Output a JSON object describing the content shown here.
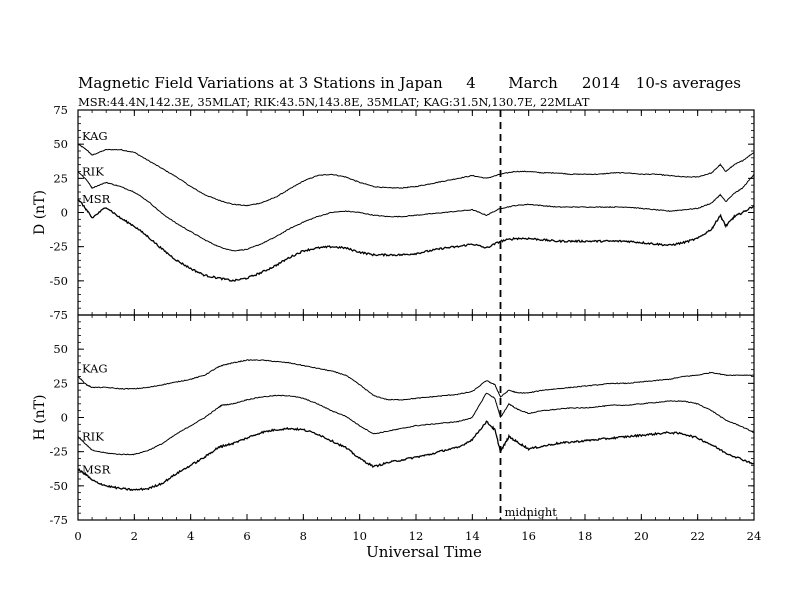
{
  "chart_data": {
    "type": "line",
    "title": "Magnetic Field Variations at 3 Stations in Japan",
    "date": "4 March 2014",
    "date_day": "4",
    "date_month": "March",
    "date_year": "2014",
    "averaging": "10-s averages",
    "subtitle": "MSR:44.4N,142.3E, 35MLAT;  RIK:43.5N,143.8E, 35MLAT;  KAG:31.5N,130.7E, 22MLAT",
    "xlabel": "Universal Time",
    "xlim": [
      0,
      24
    ],
    "x_ticks": [
      0,
      2,
      4,
      6,
      8,
      10,
      12,
      14,
      16,
      18,
      20,
      22,
      24
    ],
    "annotation": {
      "x": 15,
      "label": "midnight"
    },
    "panels": [
      {
        "ylabel": "D (nT)",
        "ylim": [
          -75,
          75
        ],
        "y_ticks": [
          75,
          50,
          25,
          0,
          -25,
          -50,
          -75
        ],
        "series": [
          {
            "name": "KAG",
            "x": [
              0,
              0.3,
              0.5,
              1,
              1.5,
              2,
              2.5,
              3,
              3.5,
              4,
              4.5,
              5,
              5.5,
              6,
              6.5,
              7,
              7.5,
              8,
              8.5,
              9,
              9.5,
              10,
              10.5,
              11,
              11.5,
              12,
              12.5,
              13,
              13.5,
              14,
              14.5,
              15,
              15.5,
              16,
              16.5,
              17,
              17.5,
              18,
              18.5,
              19,
              19.5,
              20,
              20.5,
              21,
              21.5,
              22,
              22.5,
              22.8,
              23,
              23.3,
              23.6,
              24
            ],
            "y": [
              50,
              46,
              42,
              46,
              46,
              44,
              38,
              32,
              26,
              19,
              13,
              9,
              6,
              5,
              7,
              11,
              17,
              23,
              27,
              28,
              26,
              22,
              19,
              18,
              18,
              19,
              21,
              23,
              25,
              27,
              25,
              28,
              30,
              30,
              29,
              29,
              28,
              28,
              28,
              29,
              29,
              28,
              28,
              27,
              26,
              26,
              29,
              35,
              30,
              35,
              38,
              44
            ]
          },
          {
            "name": "RIK",
            "x": [
              0,
              0.3,
              0.5,
              1,
              1.5,
              2,
              2.5,
              3,
              3.5,
              4,
              4.5,
              5,
              5.5,
              6,
              6.5,
              7,
              7.5,
              8,
              8.5,
              9,
              9.5,
              10,
              10.5,
              11,
              11.5,
              12,
              12.5,
              13,
              13.5,
              14,
              14.5,
              15,
              15.5,
              16,
              16.5,
              17,
              17.5,
              18,
              18.5,
              19,
              19.5,
              20,
              20.5,
              21,
              21.5,
              22,
              22.5,
              22.8,
              23,
              23.3,
              23.6,
              24
            ],
            "y": [
              30,
              24,
              18,
              22,
              19,
              15,
              8,
              -1,
              -8,
              -14,
              -20,
              -25,
              -28,
              -27,
              -23,
              -18,
              -12,
              -7,
              -3,
              0,
              1,
              0,
              -2,
              -3,
              -3,
              -2,
              -1,
              0,
              1,
              2,
              -2,
              3,
              5,
              6,
              5,
              4,
              4,
              4,
              4,
              4,
              4,
              3,
              2,
              1,
              2,
              3,
              7,
              13,
              8,
              14,
              18,
              28
            ]
          },
          {
            "name": "MSR",
            "x": [
              0,
              0.3,
              0.5,
              1,
              1.5,
              2,
              2.5,
              3,
              3.5,
              4,
              4.5,
              5,
              5.5,
              6,
              6.5,
              7,
              7.5,
              8,
              8.5,
              9,
              9.5,
              10,
              10.5,
              11,
              11.5,
              12,
              12.5,
              13,
              13.5,
              14,
              14.5,
              15,
              15.5,
              16,
              16.5,
              17,
              17.5,
              18,
              18.5,
              19,
              19.5,
              20,
              20.5,
              21,
              21.5,
              22,
              22.5,
              22.8,
              23,
              23.3,
              23.6,
              24
            ],
            "y": [
              10,
              2,
              -4,
              4,
              -4,
              -10,
              -18,
              -27,
              -35,
              -41,
              -46,
              -48,
              -50,
              -48,
              -44,
              -39,
              -33,
              -28,
              -26,
              -25,
              -26,
              -29,
              -31,
              -31,
              -31,
              -30,
              -28,
              -26,
              -25,
              -23,
              -26,
              -21,
              -19,
              -19,
              -20,
              -21,
              -21,
              -21,
              -21,
              -21,
              -21,
              -22,
              -23,
              -24,
              -22,
              -19,
              -12,
              -2,
              -10,
              -3,
              0,
              5
            ]
          }
        ]
      },
      {
        "ylabel": "H (nT)",
        "ylim": [
          -75,
          75
        ],
        "y_ticks": [
          50,
          25,
          0,
          -25,
          -50,
          -75
        ],
        "series": [
          {
            "name": "KAG",
            "x": [
              0,
              0.3,
              0.5,
              1,
              1.5,
              2,
              2.5,
              3,
              3.5,
              4,
              4.5,
              4.9,
              5.1,
              5.5,
              6,
              6.5,
              7,
              7.5,
              8,
              8.5,
              9,
              9.5,
              10,
              10.5,
              11,
              11.5,
              12,
              12.5,
              13,
              13.5,
              14,
              14.5,
              14.8,
              15,
              15.3,
              15.6,
              16,
              16.5,
              17,
              17.5,
              18,
              18.5,
              19,
              19.5,
              20,
              20.5,
              21,
              21.5,
              22,
              22.5,
              23,
              23.5,
              24
            ],
            "y": [
              30,
              24,
              22,
              22,
              21,
              21,
              22,
              24,
              26,
              28,
              31,
              36,
              38,
              40,
              42,
              42,
              41,
              40,
              38,
              36,
              34,
              31,
              24,
              16,
              13,
              13,
              14,
              15,
              16,
              17,
              19,
              27,
              24,
              15,
              20,
              18,
              18,
              20,
              21,
              22,
              23,
              24,
              25,
              25,
              26,
              27,
              28,
              30,
              31,
              33,
              31,
              31,
              31
            ]
          },
          {
            "name": "RIK",
            "x": [
              0,
              0.3,
              0.5,
              1,
              1.5,
              2,
              2.5,
              3,
              3.5,
              4,
              4.5,
              4.9,
              5.1,
              5.5,
              6,
              6.5,
              7,
              7.5,
              8,
              8.5,
              9,
              9.5,
              10,
              10.5,
              11,
              11.5,
              12,
              12.5,
              13,
              13.5,
              14,
              14.5,
              14.8,
              15,
              15.3,
              15.6,
              16,
              16.5,
              17,
              17.5,
              18,
              18.5,
              19,
              19.5,
              20,
              20.5,
              21,
              21.5,
              22,
              22.5,
              23,
              23.5,
              24
            ],
            "y": [
              -14,
              -20,
              -24,
              -26,
              -27,
              -27,
              -24,
              -19,
              -12,
              -6,
              0,
              6,
              9,
              10,
              13,
              15,
              16,
              16,
              14,
              10,
              5,
              1,
              -6,
              -12,
              -10,
              -8,
              -6,
              -5,
              -4,
              -3,
              0,
              18,
              14,
              0,
              10,
              6,
              3,
              5,
              6,
              7,
              7,
              8,
              9,
              9,
              10,
              11,
              12,
              12,
              10,
              5,
              -2,
              -6,
              -11
            ]
          },
          {
            "name": "MSR",
            "x": [
              0,
              0.3,
              0.5,
              1,
              1.5,
              2,
              2.5,
              3,
              3.5,
              4,
              4.5,
              4.9,
              5.1,
              5.5,
              6,
              6.5,
              7,
              7.5,
              8,
              8.5,
              9,
              9.5,
              10,
              10.5,
              11,
              11.5,
              12,
              12.5,
              13,
              13.5,
              14,
              14.5,
              14.8,
              15,
              15.3,
              15.6,
              16,
              16.5,
              17,
              17.5,
              18,
              18.5,
              19,
              19.5,
              20,
              20.5,
              21,
              21.5,
              22,
              22.5,
              23,
              23.5,
              24
            ],
            "y": [
              -38,
              -42,
              -46,
              -50,
              -52,
              -53,
              -52,
              -48,
              -41,
              -35,
              -29,
              -23,
              -21,
              -19,
              -15,
              -11,
              -9,
              -8,
              -9,
              -12,
              -17,
              -22,
              -30,
              -36,
              -33,
              -31,
              -29,
              -27,
              -24,
              -22,
              -16,
              -3,
              -9,
              -25,
              -14,
              -18,
              -23,
              -21,
              -19,
              -18,
              -17,
              -16,
              -15,
              -14,
              -13,
              -12,
              -11,
              -12,
              -15,
              -20,
              -26,
              -30,
              -34
            ]
          }
        ]
      }
    ]
  }
}
